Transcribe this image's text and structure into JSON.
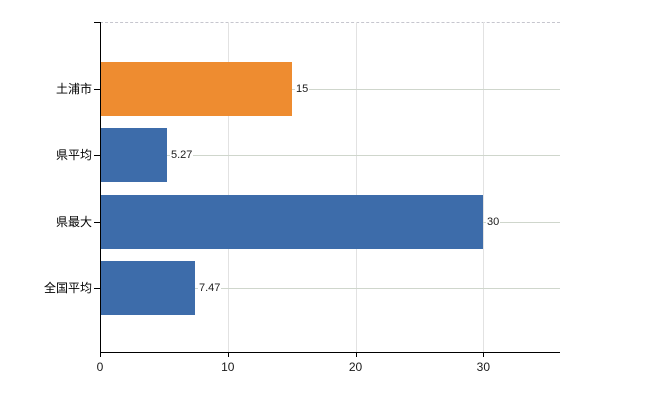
{
  "chart_data": {
    "type": "bar",
    "orientation": "horizontal",
    "title": "",
    "xlabel": "",
    "ylabel": "",
    "categories": [
      "土浦市",
      "県平均",
      "県最大",
      "全国平均"
    ],
    "values": [
      15,
      5.27,
      30,
      7.47
    ],
    "value_labels": [
      "15",
      "5.27",
      "30",
      "7.47"
    ],
    "bar_colors": [
      "#EE8C30",
      "#3D6CAA",
      "#3D6CAA",
      "#3D6CAA"
    ],
    "xlim": [
      0,
      36
    ],
    "x_ticks": [
      0,
      10,
      20,
      30
    ],
    "x_tick_labels": [
      "0",
      "10",
      "20",
      "30"
    ],
    "grid": true,
    "legend": false,
    "colors": {
      "background": "#ffffff",
      "axis": "#000000",
      "h_gridline": "#cfd6cc",
      "v_gridline": "#e2e2e2",
      "plot_top_border": "#c6c6ce",
      "value_label_text": "#1c1c1c",
      "category_label_text": "#000000"
    }
  }
}
